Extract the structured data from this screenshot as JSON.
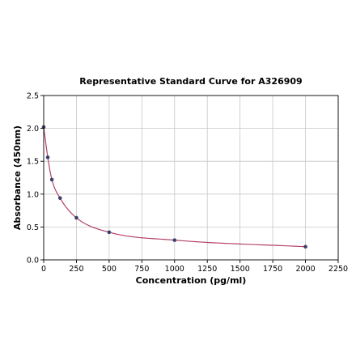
{
  "chart_data": {
    "type": "scatter",
    "title": "Representative Standard Curve for A326909",
    "xlabel": "Concentration (pg/ml)",
    "ylabel": "Absorbance (450nm)",
    "xlim": [
      0,
      2250
    ],
    "ylim": [
      0,
      2.5
    ],
    "xticks": [
      "0",
      "250",
      "500",
      "750",
      "1000",
      "1250",
      "1500",
      "1750",
      "2000",
      "2250"
    ],
    "yticks": [
      "0.0",
      "0.5",
      "1.0",
      "1.5",
      "2.0",
      "2.5"
    ],
    "grid": true,
    "series": [
      {
        "x": [
          0,
          31.25,
          62.5,
          125,
          250,
          500,
          1000,
          2000
        ],
        "y": [
          2.02,
          1.56,
          1.22,
          0.94,
          0.64,
          0.42,
          0.3,
          0.2
        ],
        "marker_color": "#3b3f6e",
        "line_color": "#b5416c"
      }
    ]
  }
}
